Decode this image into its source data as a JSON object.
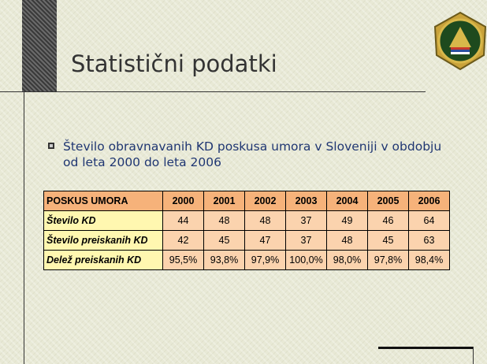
{
  "slide": {
    "title": "Statistični podatki",
    "bullet": [
      "Število obravnavanih KD poskusa umora v Sloveniji v obdobju",
      "od leta 2000 do leta 2006"
    ],
    "table": {
      "header": [
        "POSKUS UMORA",
        "2000",
        "2001",
        "2002",
        "2003",
        "2004",
        "2005",
        "2006"
      ],
      "rows": [
        [
          "Število KD",
          44,
          48,
          48,
          37,
          49,
          46,
          64
        ],
        [
          "Število preiskanih KD",
          42,
          45,
          47,
          37,
          48,
          45,
          63
        ],
        [
          "Delež preiskanih KD",
          "95,5%",
          "93,8%",
          "97,9%",
          "100,0%",
          "98,0%",
          "97,8%",
          "98,4%"
        ]
      ]
    }
  }
}
